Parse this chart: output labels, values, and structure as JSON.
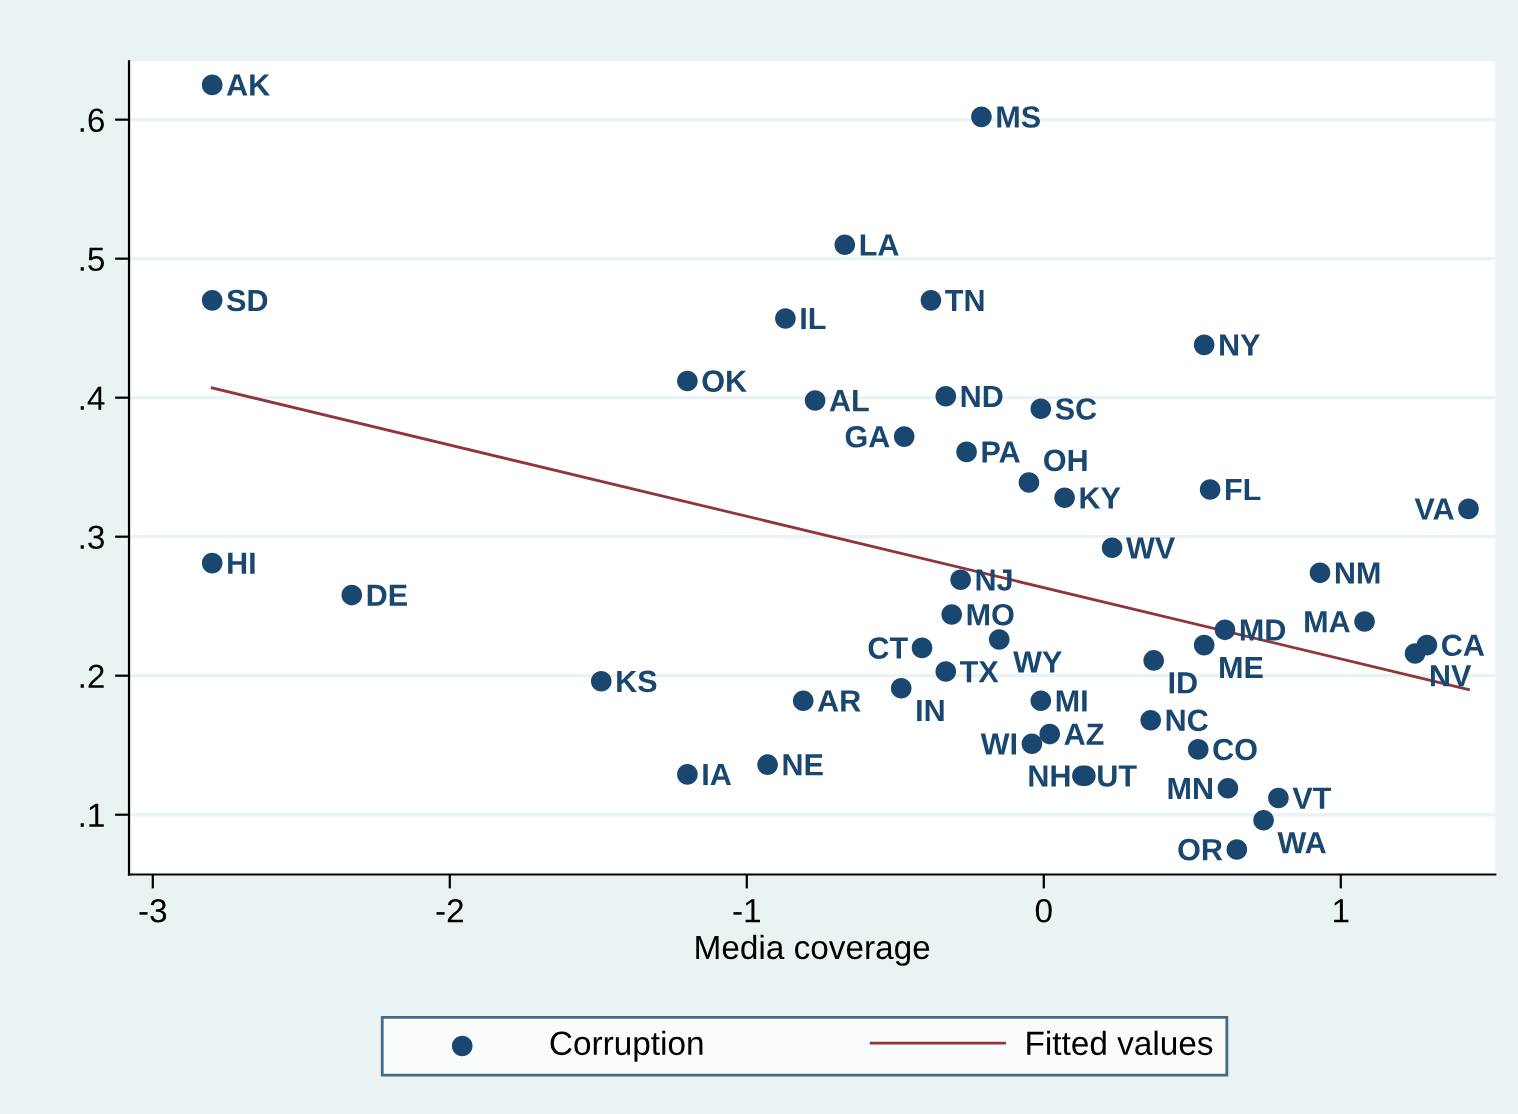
{
  "chart_data": {
    "type": "scatter",
    "xlabel": "Media coverage",
    "xlim": [
      -3.08,
      1.52
    ],
    "ylim": [
      0.057,
      0.642
    ],
    "xticks": [
      -3,
      -2,
      -1,
      0,
      1
    ],
    "yticks": [
      {
        "value": 0.1,
        "label": ".1"
      },
      {
        "value": 0.2,
        "label": ".2"
      },
      {
        "value": 0.3,
        "label": ".3"
      },
      {
        "value": 0.4,
        "label": ".4"
      },
      {
        "value": 0.5,
        "label": ".5"
      },
      {
        "value": 0.6,
        "label": ".6"
      }
    ],
    "grid": "y",
    "legend": "bottom",
    "series": [
      {
        "name": "Corruption",
        "marker": "circle",
        "color": "#1a476f",
        "x": [
          -2.8,
          -0.21,
          -0.67,
          -2.8,
          -0.87,
          -0.38,
          0.54,
          -1.2,
          -0.77,
          -0.33,
          -0.01,
          -0.47,
          -0.26,
          -0.05,
          0.07,
          0.56,
          1.43,
          -2.8,
          -2.33,
          0.93,
          -0.28,
          0.23,
          -0.31,
          1.08,
          0.61,
          0.54,
          1.29,
          1.25,
          -0.15,
          -0.41,
          0.37,
          -1.49,
          -0.48,
          -0.33,
          -0.81,
          -0.01,
          0.36,
          0.02,
          -0.04,
          0.52,
          -0.93,
          -1.2,
          0.62,
          0.79,
          0.74,
          0.65,
          0.13,
          0.14
        ],
        "values": [
          0.625,
          0.602,
          0.51,
          0.47,
          0.457,
          0.47,
          0.438,
          0.412,
          0.398,
          0.401,
          0.392,
          0.372,
          0.361,
          0.339,
          0.328,
          0.334,
          0.32,
          0.281,
          0.258,
          0.274,
          0.269,
          0.292,
          0.244,
          0.239,
          0.233,
          0.222,
          0.222,
          0.216,
          0.226,
          0.22,
          0.211,
          0.196,
          0.191,
          0.203,
          0.182,
          0.182,
          0.168,
          0.158,
          0.151,
          0.147,
          0.136,
          0.129,
          0.119,
          0.112,
          0.096,
          0.075,
          0.128,
          0.128
        ],
        "value_labels": [
          "AK",
          "MS",
          "LA",
          "SD",
          "IL",
          "TN",
          "NY",
          "OK",
          "AL",
          "ND",
          "SC",
          "GA",
          "PA",
          "OH",
          "KY",
          "FL",
          "VA",
          "HI",
          "DE",
          "NM",
          "NJ",
          "WV",
          "MO",
          "MA",
          "MD",
          "ME",
          "CA",
          "NV",
          "WY",
          "CT",
          "ID",
          "KS",
          "IN",
          "TX",
          "AR",
          "MI",
          "NC",
          "AZ",
          "WI",
          "CO",
          "NE",
          "IA",
          "MN",
          "VT",
          "WA",
          "OR",
          "UT",
          "NH"
        ]
      },
      {
        "name": "Fitted values",
        "type": "line",
        "color": "#90353b",
        "x": [
          -2.8,
          1.43
        ],
        "values": [
          0.407,
          0.19
        ]
      }
    ]
  }
}
